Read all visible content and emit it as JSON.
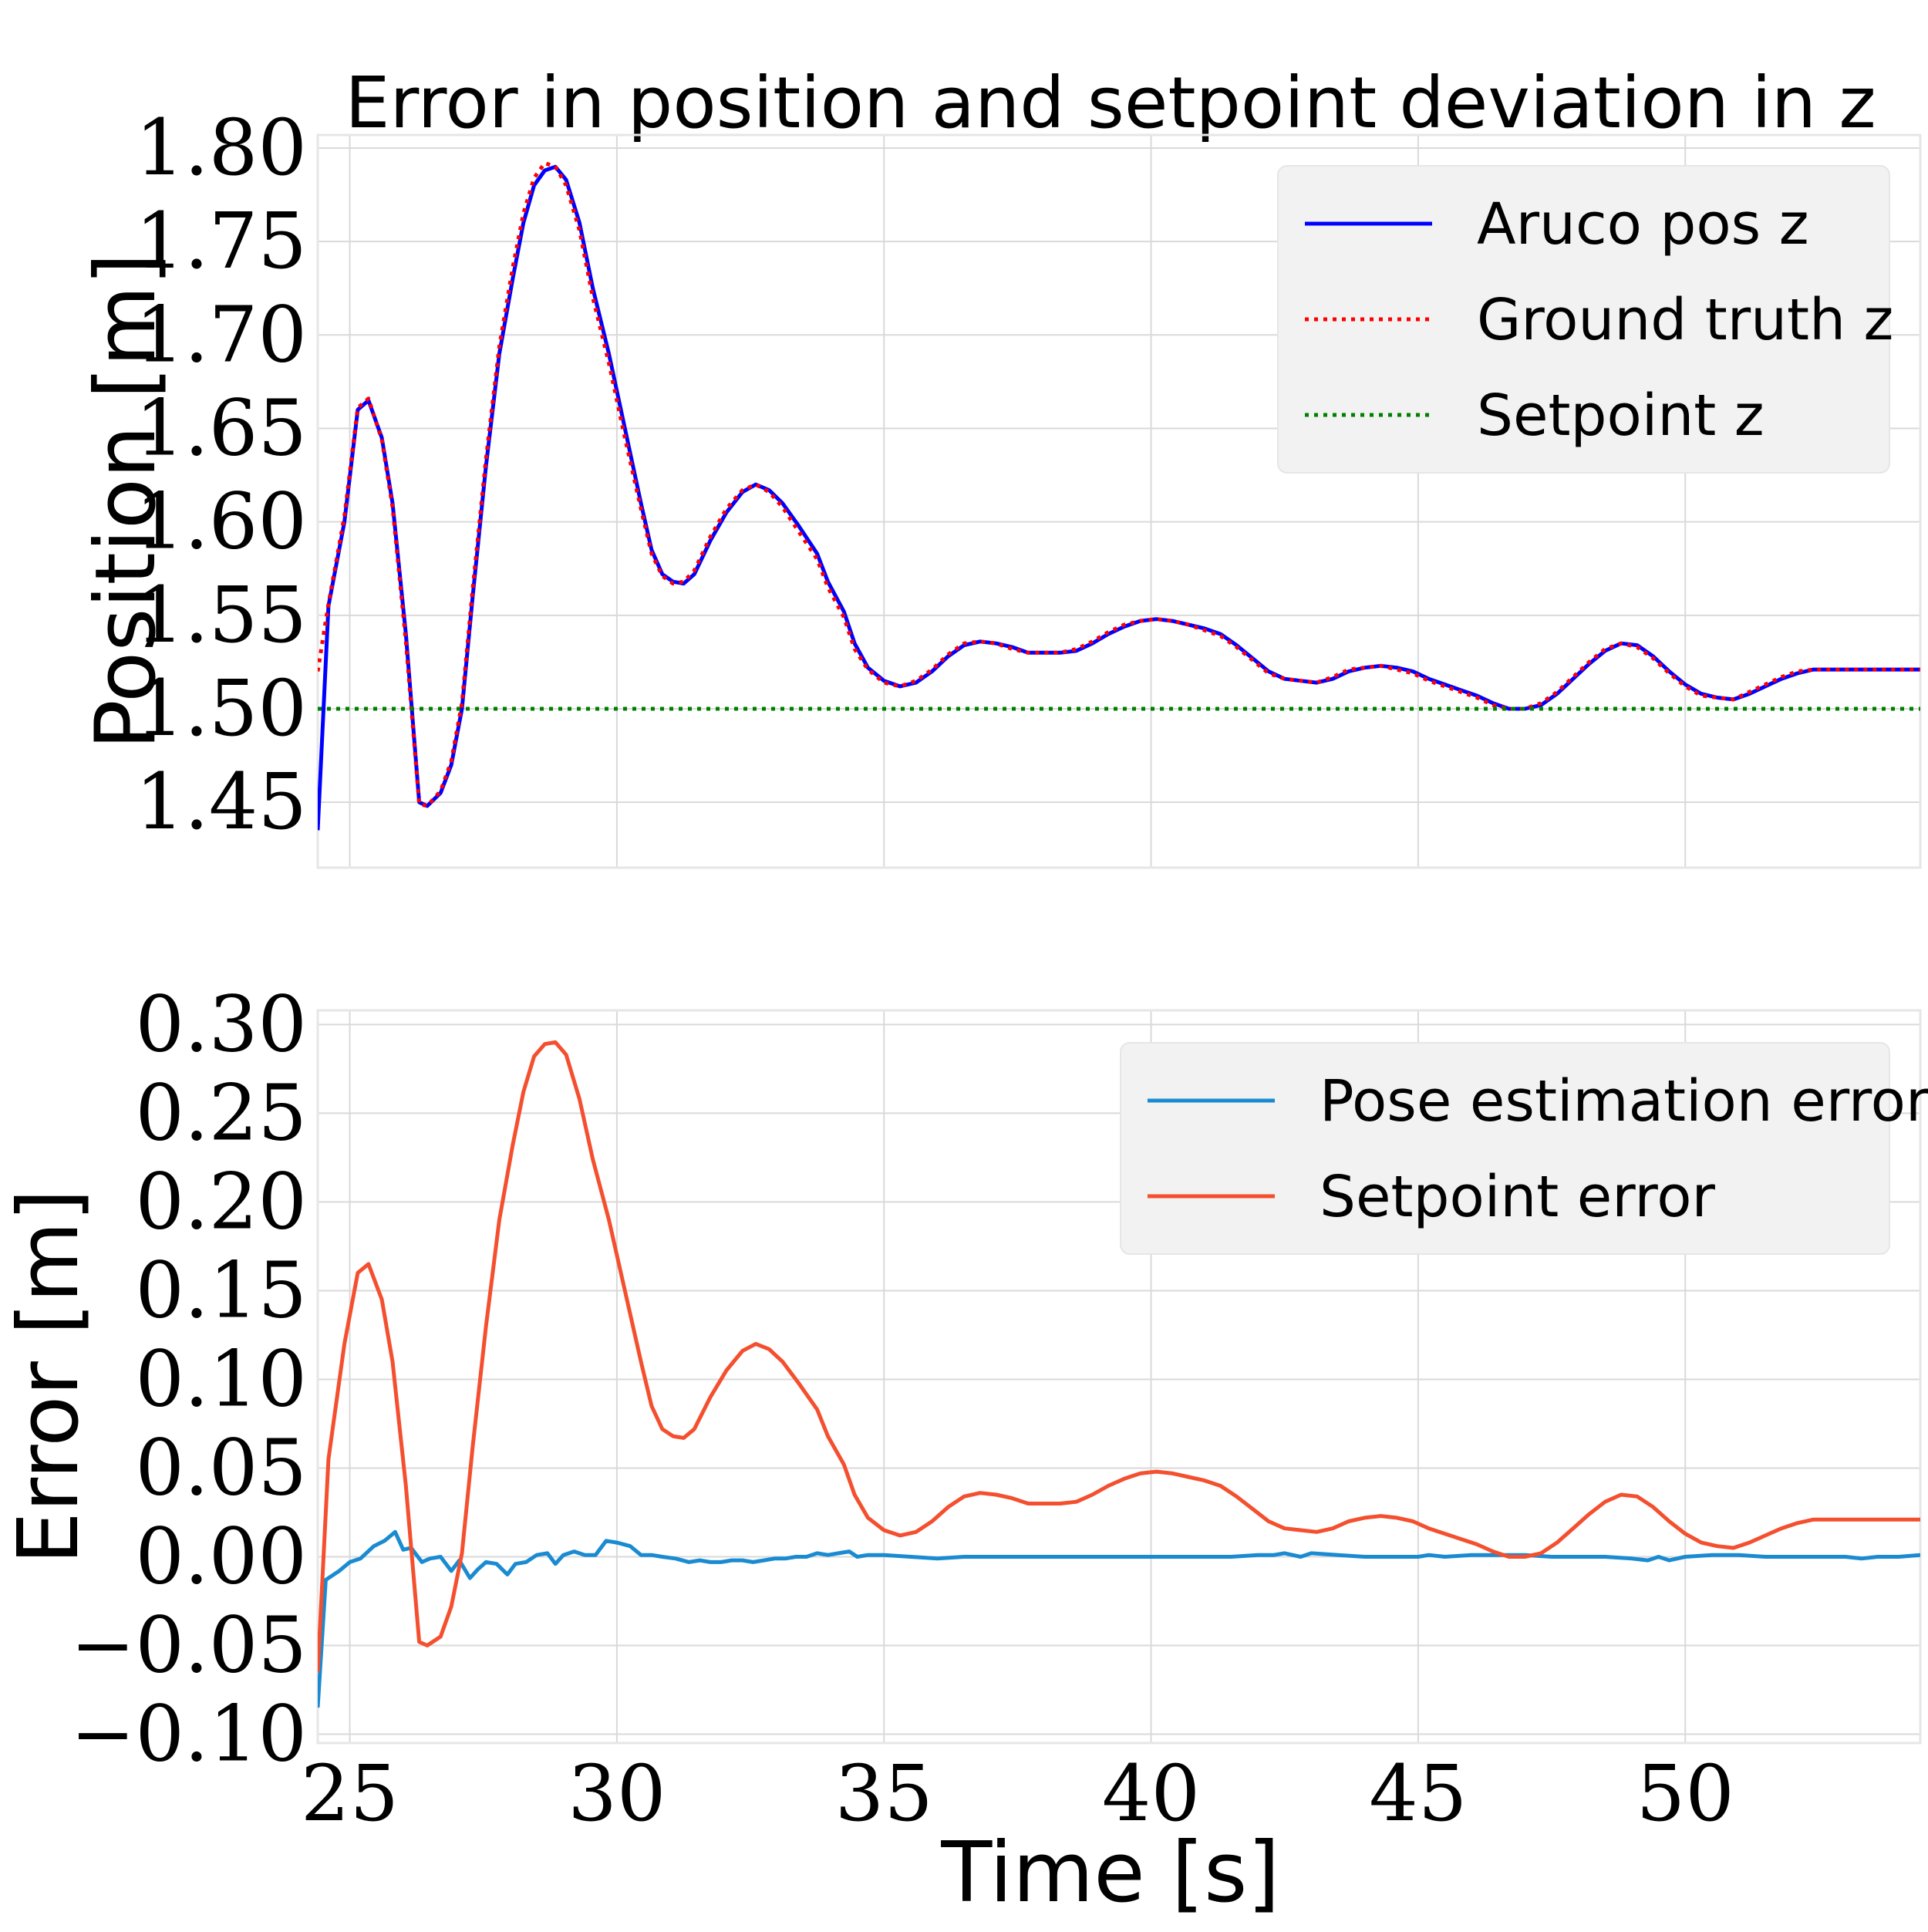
{
  "figure": {
    "title": "Error in position and setpoint deviation in z",
    "xlabel": "Time [s]"
  },
  "chart_data": [
    {
      "type": "line",
      "title": "Error in position and setpoint deviation in z",
      "xlabel": "",
      "ylabel": "Position [m]",
      "xlim": [
        24.4,
        54.4
      ],
      "ylim": [
        1.415,
        1.807
      ],
      "xticks": [
        25,
        30,
        35,
        40,
        45,
        50
      ],
      "yticks": [
        1.45,
        1.5,
        1.55,
        1.6,
        1.65,
        1.7,
        1.75,
        1.8
      ],
      "ytick_labels": [
        "1.45",
        "1.50",
        "1.55",
        "1.60",
        "1.65",
        "1.70",
        "1.75",
        "1.80"
      ],
      "grid": true,
      "legend_position": "top-right",
      "series": [
        {
          "name": "Aruco pos z",
          "color": "#0000ff",
          "style": "solid",
          "x": [
            24.4,
            24.6,
            24.9,
            25.15,
            25.35,
            25.6,
            25.8,
            26.05,
            26.3,
            26.45,
            26.7,
            26.9,
            27.1,
            27.3,
            27.55,
            27.8,
            28.05,
            28.25,
            28.45,
            28.65,
            28.85,
            29.05,
            29.3,
            29.55,
            29.85,
            30.15,
            30.45,
            30.65,
            30.85,
            31.05,
            31.25,
            31.45,
            31.75,
            32.05,
            32.35,
            32.6,
            32.85,
            33.1,
            33.4,
            33.75,
            33.95,
            34.25,
            34.45,
            34.7,
            35.0,
            35.3,
            35.6,
            35.9,
            36.2,
            36.5,
            36.8,
            37.1,
            37.4,
            37.7,
            38.0,
            38.3,
            38.6,
            38.9,
            39.2,
            39.5,
            39.8,
            40.1,
            40.4,
            40.7,
            41.0,
            41.3,
            41.6,
            41.9,
            42.2,
            42.5,
            42.8,
            43.1,
            43.4,
            43.7,
            44.0,
            44.3,
            44.6,
            44.9,
            45.2,
            45.5,
            45.8,
            46.1,
            46.4,
            46.7,
            47.0,
            47.3,
            47.6,
            47.9,
            48.2,
            48.5,
            48.8,
            49.1,
            49.4,
            49.7,
            50.0,
            50.3,
            50.6,
            50.9,
            51.2,
            51.5,
            51.8,
            52.1,
            52.4,
            52.7,
            53.0,
            53.3,
            53.6,
            53.9,
            54.2,
            54.4
          ],
          "y": [
            1.435,
            1.555,
            1.6,
            1.66,
            1.665,
            1.645,
            1.61,
            1.54,
            1.45,
            1.448,
            1.455,
            1.47,
            1.5,
            1.56,
            1.63,
            1.69,
            1.73,
            1.76,
            1.78,
            1.788,
            1.79,
            1.783,
            1.76,
            1.725,
            1.69,
            1.65,
            1.61,
            1.585,
            1.572,
            1.568,
            1.567,
            1.572,
            1.59,
            1.605,
            1.616,
            1.62,
            1.617,
            1.61,
            1.598,
            1.583,
            1.568,
            1.552,
            1.535,
            1.522,
            1.515,
            1.512,
            1.514,
            1.52,
            1.528,
            1.534,
            1.536,
            1.535,
            1.533,
            1.53,
            1.53,
            1.53,
            1.531,
            1.535,
            1.54,
            1.544,
            1.547,
            1.548,
            1.547,
            1.545,
            1.543,
            1.54,
            1.534,
            1.527,
            1.52,
            1.516,
            1.515,
            1.514,
            1.516,
            1.52,
            1.522,
            1.523,
            1.522,
            1.52,
            1.516,
            1.513,
            1.51,
            1.507,
            1.503,
            1.5,
            1.5,
            1.502,
            1.508,
            1.516,
            1.524,
            1.531,
            1.535,
            1.534,
            1.528,
            1.52,
            1.513,
            1.508,
            1.506,
            1.505,
            1.508,
            1.512,
            1.516,
            1.519,
            1.521,
            1.521,
            1.521,
            1.521,
            1.521,
            1.521,
            1.521,
            1.521
          ]
        },
        {
          "name": "Ground truth z",
          "color": "#ff0000",
          "style": "dotted",
          "x": [
            24.4,
            24.6,
            24.9,
            25.15,
            25.35,
            25.6,
            25.8,
            26.05,
            26.3,
            26.45,
            26.7,
            26.9,
            27.1,
            27.3,
            27.55,
            27.8,
            28.05,
            28.25,
            28.45,
            28.65,
            28.85,
            29.05,
            29.3,
            29.55,
            29.85,
            30.15,
            30.45,
            30.65,
            30.85,
            31.05,
            31.25,
            31.45,
            31.75,
            32.05,
            32.35,
            32.6,
            32.85,
            33.1,
            33.4,
            33.75,
            33.95,
            34.25,
            34.45,
            34.7,
            35.0,
            35.3,
            35.6,
            35.9,
            36.2,
            36.5,
            36.8,
            37.1,
            37.4,
            37.7,
            38.0,
            38.3,
            38.6,
            38.9,
            39.2,
            39.5,
            39.8,
            40.1,
            40.4,
            40.7,
            41.0,
            41.3,
            41.6,
            41.9,
            42.2,
            42.5,
            42.8,
            43.1,
            43.4,
            43.7,
            44.0,
            44.3,
            44.6,
            44.9,
            45.2,
            45.5,
            45.8,
            46.1,
            46.4,
            46.7,
            47.0,
            47.3,
            47.6,
            47.9,
            48.2,
            48.5,
            48.8,
            49.1,
            49.4,
            49.7,
            50.0,
            50.3,
            50.6,
            50.9,
            51.2,
            51.5,
            51.8,
            52.1,
            52.4,
            52.7,
            53.0,
            53.3,
            53.6,
            53.9,
            54.2,
            54.4
          ],
          "y": [
            1.52,
            1.556,
            1.603,
            1.661,
            1.666,
            1.644,
            1.608,
            1.536,
            1.449,
            1.448,
            1.456,
            1.472,
            1.503,
            1.564,
            1.634,
            1.694,
            1.736,
            1.765,
            1.784,
            1.792,
            1.79,
            1.78,
            1.756,
            1.72,
            1.685,
            1.645,
            1.607,
            1.583,
            1.571,
            1.567,
            1.568,
            1.574,
            1.592,
            1.607,
            1.617,
            1.62,
            1.616,
            1.608,
            1.595,
            1.58,
            1.565,
            1.549,
            1.532,
            1.521,
            1.514,
            1.512,
            1.515,
            1.521,
            1.529,
            1.535,
            1.536,
            1.535,
            1.532,
            1.53,
            1.53,
            1.53,
            1.532,
            1.536,
            1.541,
            1.545,
            1.547,
            1.548,
            1.547,
            1.545,
            1.542,
            1.539,
            1.533,
            1.526,
            1.519,
            1.516,
            1.515,
            1.514,
            1.517,
            1.521,
            1.522,
            1.523,
            1.521,
            1.519,
            1.515,
            1.512,
            1.509,
            1.506,
            1.502,
            1.5,
            1.5,
            1.503,
            1.509,
            1.517,
            1.525,
            1.532,
            1.535,
            1.533,
            1.527,
            1.519,
            1.512,
            1.507,
            1.506,
            1.505,
            1.509,
            1.513,
            1.517,
            1.52,
            1.521,
            1.521,
            1.521,
            1.521,
            1.521,
            1.521,
            1.521,
            1.521
          ]
        },
        {
          "name": "Setpoint z",
          "color": "#008000",
          "style": "dotted",
          "x": [
            24.4,
            54.4
          ],
          "y": [
            1.5,
            1.5
          ]
        }
      ]
    },
    {
      "type": "line",
      "title": "",
      "xlabel": "Time [s]",
      "ylabel": "Error [m]",
      "xlim": [
        24.4,
        54.4
      ],
      "ylim": [
        -0.105,
        0.308
      ],
      "xticks": [
        25,
        30,
        35,
        40,
        45,
        50
      ],
      "xtick_labels": [
        "25",
        "30",
        "35",
        "40",
        "45",
        "50"
      ],
      "yticks": [
        -0.1,
        -0.05,
        0.0,
        0.05,
        0.1,
        0.15,
        0.2,
        0.25,
        0.3
      ],
      "ytick_labels": [
        "−0.10",
        "−0.05",
        "0.00",
        "0.05",
        "0.10",
        "0.15",
        "0.20",
        "0.25",
        "0.30"
      ],
      "grid": true,
      "legend_position": "top-right",
      "series": [
        {
          "name": "Pose estimation error",
          "color": "#1a8bd1",
          "style": "solid",
          "x": [
            24.4,
            24.55,
            24.8,
            25.0,
            25.2,
            25.45,
            25.65,
            25.85,
            26.0,
            26.15,
            26.35,
            26.5,
            26.7,
            26.9,
            27.05,
            27.25,
            27.4,
            27.55,
            27.75,
            27.95,
            28.1,
            28.3,
            28.5,
            28.7,
            28.85,
            29.0,
            29.2,
            29.4,
            29.6,
            29.8,
            30.0,
            30.25,
            30.45,
            30.65,
            30.85,
            31.1,
            31.35,
            31.55,
            31.75,
            31.95,
            32.15,
            32.35,
            32.55,
            32.75,
            32.95,
            33.15,
            33.35,
            33.55,
            33.75,
            33.95,
            34.15,
            34.35,
            34.5,
            34.7,
            35.0,
            35.5,
            36.0,
            36.5,
            37.0,
            37.5,
            38.0,
            38.5,
            39.0,
            39.5,
            40.0,
            40.5,
            41.0,
            41.5,
            42.0,
            42.3,
            42.5,
            42.8,
            43.0,
            43.5,
            44.0,
            44.5,
            45.0,
            45.2,
            45.5,
            46.0,
            46.5,
            47.0,
            47.5,
            48.0,
            48.5,
            49.0,
            49.3,
            49.5,
            49.7,
            50.0,
            50.5,
            51.0,
            51.5,
            52.0,
            52.5,
            53.0,
            53.3,
            53.6,
            54.0,
            54.4
          ],
          "y": [
            -0.085,
            -0.013,
            -0.008,
            -0.003,
            -0.001,
            0.006,
            0.009,
            0.014,
            0.004,
            0.005,
            -0.003,
            -0.001,
            0.0,
            -0.008,
            -0.002,
            -0.012,
            -0.007,
            -0.003,
            -0.004,
            -0.01,
            -0.004,
            -0.003,
            0.001,
            0.002,
            -0.004,
            0.001,
            0.003,
            0.001,
            0.001,
            0.009,
            0.008,
            0.006,
            0.001,
            0.001,
            0.0,
            -0.001,
            -0.003,
            -0.002,
            -0.003,
            -0.003,
            -0.002,
            -0.002,
            -0.003,
            -0.002,
            -0.001,
            -0.001,
            0.0,
            0.0,
            0.002,
            0.001,
            0.002,
            0.003,
            0.0,
            0.001,
            0.001,
            0.0,
            -0.001,
            0.0,
            0.0,
            0.0,
            0.0,
            0.0,
            0.0,
            0.0,
            0.0,
            0.0,
            0.0,
            0.0,
            0.001,
            0.001,
            0.002,
            0.0,
            0.002,
            0.001,
            0.0,
            0.0,
            0.0,
            0.001,
            0.0,
            0.001,
            0.001,
            0.001,
            0.0,
            0.0,
            0.0,
            -0.001,
            -0.002,
            0.0,
            -0.002,
            0.0,
            0.001,
            0.001,
            0.0,
            0.0,
            0.0,
            0.0,
            -0.001,
            0.0,
            0.0,
            0.001
          ]
        },
        {
          "name": "Setpoint error",
          "color": "#f44f2e",
          "style": "solid",
          "x": [
            24.4,
            24.6,
            24.9,
            25.15,
            25.35,
            25.6,
            25.8,
            26.05,
            26.3,
            26.45,
            26.7,
            26.9,
            27.1,
            27.3,
            27.55,
            27.8,
            28.05,
            28.25,
            28.45,
            28.65,
            28.85,
            29.05,
            29.3,
            29.55,
            29.85,
            30.15,
            30.45,
            30.65,
            30.85,
            31.05,
            31.25,
            31.45,
            31.75,
            32.05,
            32.35,
            32.6,
            32.85,
            33.1,
            33.4,
            33.75,
            33.95,
            34.25,
            34.45,
            34.7,
            35.0,
            35.3,
            35.6,
            35.9,
            36.2,
            36.5,
            36.8,
            37.1,
            37.4,
            37.7,
            38.0,
            38.3,
            38.6,
            38.9,
            39.2,
            39.5,
            39.8,
            40.1,
            40.4,
            40.7,
            41.0,
            41.3,
            41.6,
            41.9,
            42.2,
            42.5,
            42.8,
            43.1,
            43.4,
            43.7,
            44.0,
            44.3,
            44.6,
            44.9,
            45.2,
            45.5,
            45.8,
            46.1,
            46.4,
            46.7,
            47.0,
            47.3,
            47.6,
            47.9,
            48.2,
            48.5,
            48.8,
            49.1,
            49.4,
            49.7,
            50.0,
            50.3,
            50.6,
            50.9,
            51.2,
            51.5,
            51.8,
            52.1,
            52.4,
            52.7,
            53.0,
            53.3,
            53.6,
            53.9,
            54.2,
            54.4
          ],
          "y": [
            -0.065,
            0.055,
            0.12,
            0.16,
            0.165,
            0.145,
            0.11,
            0.04,
            -0.048,
            -0.05,
            -0.045,
            -0.028,
            0.002,
            0.062,
            0.13,
            0.19,
            0.232,
            0.262,
            0.282,
            0.289,
            0.29,
            0.283,
            0.258,
            0.224,
            0.19,
            0.15,
            0.11,
            0.085,
            0.072,
            0.068,
            0.067,
            0.072,
            0.09,
            0.105,
            0.116,
            0.12,
            0.117,
            0.11,
            0.098,
            0.083,
            0.068,
            0.052,
            0.035,
            0.022,
            0.015,
            0.012,
            0.014,
            0.02,
            0.028,
            0.034,
            0.036,
            0.035,
            0.033,
            0.03,
            0.03,
            0.03,
            0.031,
            0.035,
            0.04,
            0.044,
            0.047,
            0.048,
            0.047,
            0.045,
            0.043,
            0.04,
            0.034,
            0.027,
            0.02,
            0.016,
            0.015,
            0.014,
            0.016,
            0.02,
            0.022,
            0.023,
            0.022,
            0.02,
            0.016,
            0.013,
            0.01,
            0.007,
            0.003,
            0.0,
            0.0,
            0.002,
            0.008,
            0.016,
            0.024,
            0.031,
            0.035,
            0.034,
            0.028,
            0.02,
            0.013,
            0.008,
            0.006,
            0.005,
            0.008,
            0.012,
            0.016,
            0.019,
            0.021,
            0.021,
            0.021,
            0.021,
            0.021,
            0.021,
            0.021,
            0.021
          ]
        }
      ]
    }
  ]
}
